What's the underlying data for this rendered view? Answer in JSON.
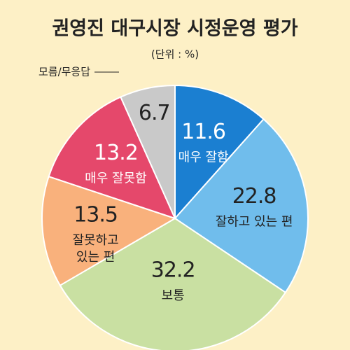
{
  "chart_data": {
    "type": "pie",
    "title": "권영진 대구시장 시정운영 평가",
    "subtitle": "(단위 : %)",
    "categories": [
      "매우 잘함",
      "잘하고 있는 편",
      "보통",
      "잘못하고 있는 편",
      "매우 잘못함",
      "모름/무응답"
    ],
    "values": [
      11.6,
      22.8,
      32.2,
      13.5,
      13.2,
      6.7
    ],
    "colors": [
      "#1b7fd1",
      "#70bdec",
      "#c9e0a2",
      "#f9b17c",
      "#e5486b",
      "#c9c9c9"
    ]
  }
}
